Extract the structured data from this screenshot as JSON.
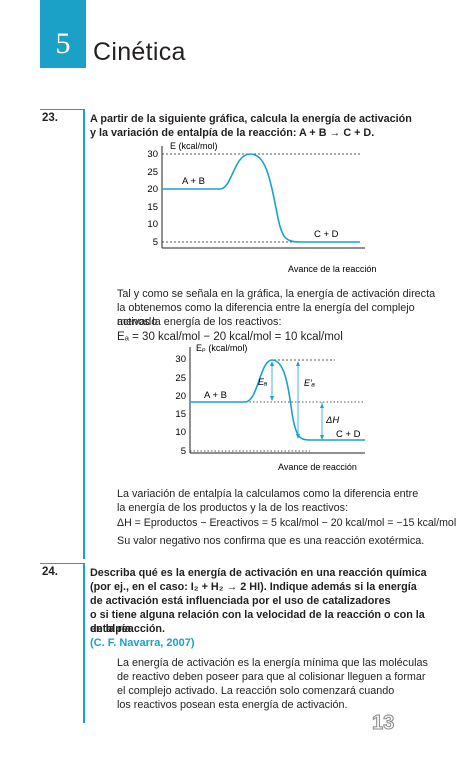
{
  "chapter": {
    "number": "5",
    "title": "Cinética"
  },
  "q23": {
    "number": "23.",
    "line1": "A partir de la siguiente gráfica, calcula la energía de activación",
    "line2": "y la variación de entalpía de la reacción: A + B → C + D.",
    "chart1": {
      "ylabel": "E (kcal/mol)",
      "xlabel": "Avance de la reacción",
      "reactants": "A + B",
      "products": "C + D",
      "ticks": [
        "30",
        "25",
        "20",
        "15",
        "10",
        "5"
      ]
    },
    "para1": [
      "Tal y como se señala en la gráfica, la energía de activación directa",
      "la obtenemos como la diferencia entre la energía del complejo activado",
      "menos la energía de los reactivos:"
    ],
    "eq1": "Eₐ = 30 kcal/mol − 20 kcal/mol = 10 kcal/mol",
    "chart2": {
      "ylabel": "Eₚ (kcal/mol)",
      "xlabel": "Avance de reacción",
      "reactants": "A + B",
      "products": "C + D",
      "ea": "Eₐ",
      "ea_prime": "E′ₐ",
      "dh": "ΔH",
      "ticks": [
        "30",
        "25",
        "20",
        "15",
        "10",
        "5"
      ]
    },
    "para2": [
      "La variación de entalpía la calculamos como la diferencia entre",
      "la energía de los productos y la de los reactivos:"
    ],
    "eq2": "ΔH = Eproductos − Ereactivos = 5 kcal/mol − 20 kcal/mol = −15 kcal/mol",
    "para3": "Su valor negativo nos confirma que es una reacción exotérmica."
  },
  "q24": {
    "number": "24.",
    "lines": [
      "Describa qué es la energía de activación en una reacción química",
      "(por ej., en el caso: I₂ + H₂ → 2 HI). Indique además si la energía",
      "de activación está influenciada por el uso de catalizadores",
      "o si tiene alguna relación con la velocidad de la reacción o con la entalpía",
      "de la reacción."
    ],
    "citation": "(C. F. Navarra, 2007)",
    "answer": [
      "La energía de activación es la energía mínima que las moléculas",
      "de reactivo deben poseer para que al colisionar lleguen a formar",
      "el complejo activado. La reacción solo comenzará cuando",
      "los reactivos posean esta energía de activación."
    ]
  },
  "page_number": "13",
  "colors": {
    "accent": "#1ba1c8"
  }
}
